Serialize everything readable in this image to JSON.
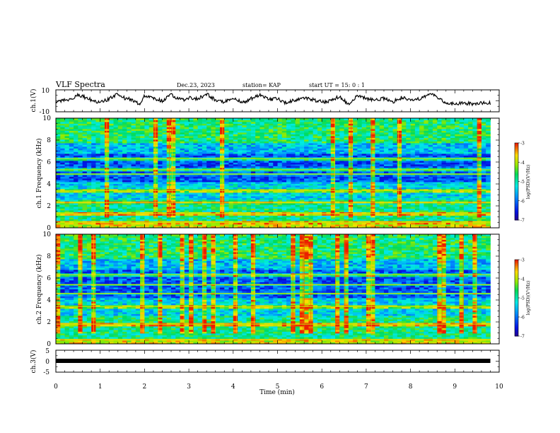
{
  "header": {
    "title": "VLF Spectra",
    "date": "Dec.23, 2023",
    "station": "station= KAP",
    "start_time": "start  UT =   15: 0   : 1"
  },
  "chart_data": [
    {
      "type": "line",
      "panel": "ch1-waveform",
      "ylabel": "ch.1(V)",
      "ylim": [
        -10,
        10
      ],
      "yticks": [
        "10",
        "-10"
      ],
      "xlim": [
        0,
        10
      ],
      "data_end_x": 9.8,
      "series": [
        {
          "x": [
            0,
            0.2,
            0.4,
            0.5,
            0.6,
            0.8,
            1.0,
            1.2,
            1.4,
            1.5,
            1.7,
            1.9,
            2.0,
            2.2,
            2.4,
            2.6,
            2.7,
            2.9,
            3.0,
            3.2,
            3.4,
            3.6,
            3.8,
            4.0,
            4.2,
            4.4,
            4.6,
            4.8,
            5.0,
            5.2,
            5.4,
            5.6,
            5.8,
            6.0,
            6.2,
            6.4,
            6.6,
            6.8,
            7.0,
            7.2,
            7.4,
            7.6,
            7.8,
            8.0,
            8.2,
            8.4,
            8.5,
            8.6,
            8.8,
            9.0,
            9.2,
            9.4,
            9.6,
            9.8
          ],
          "y": [
            -2,
            1,
            2,
            6,
            4,
            1,
            -2,
            2,
            6,
            3,
            1,
            -3,
            5,
            2,
            0,
            6,
            3,
            1,
            3,
            2,
            6,
            1,
            -1,
            3,
            -2,
            2,
            5,
            1,
            2,
            -2,
            1,
            3,
            1,
            -1,
            0,
            4,
            -3,
            5,
            2,
            1,
            2,
            -1,
            3,
            0,
            2,
            5,
            7,
            3,
            -2,
            -3,
            -2,
            -3,
            -2,
            -2
          ]
        }
      ]
    },
    {
      "type": "heatmap",
      "panel": "ch1-spectrogram",
      "ylabel": "ch.1  Frequency  (kHz)",
      "ylim": [
        0,
        10
      ],
      "yticks": [
        "0",
        "2",
        "4",
        "6",
        "8",
        "10"
      ],
      "xlim": [
        0,
        10
      ],
      "data_end_x": 9.8,
      "colorbar": {
        "label": "log(PSD)(V²/Hz)",
        "range": [
          -7,
          -3
        ],
        "ticks": [
          "-3",
          "-4",
          "-5",
          "-6",
          "-7"
        ]
      },
      "bands_khz": [
        0.5,
        1.3,
        2.3,
        3.4,
        4.9,
        5.3,
        6.3
      ]
    },
    {
      "type": "heatmap",
      "panel": "ch2-spectrogram",
      "ylabel": "ch.2  Frequency  (kHz)",
      "ylim": [
        0,
        10
      ],
      "yticks": [
        "0",
        "2",
        "4",
        "6",
        "8",
        "10"
      ],
      "xlim": [
        0,
        10
      ],
      "data_end_x": 9.8,
      "colorbar": {
        "label": "log(PSD)(V²/Hz)",
        "range": [
          -7,
          -3
        ],
        "ticks": [
          "-3",
          "-4",
          "-5",
          "-6",
          "-7"
        ]
      },
      "bands_khz": [
        0.4,
        1.8,
        3.4,
        4.6,
        5.4,
        6.3
      ]
    },
    {
      "type": "line",
      "panel": "ch3-waveform",
      "ylabel": "ch.3(V)",
      "ylim": [
        -5,
        5
      ],
      "yticks": [
        "5",
        "0",
        "-5"
      ],
      "xlim": [
        0,
        10
      ],
      "xticks": [
        "0",
        "1",
        "2",
        "3",
        "4",
        "5",
        "6",
        "7",
        "8",
        "9",
        "10"
      ],
      "xlabel": "Time  (min)",
      "data_end_x": 9.8,
      "series": [
        {
          "x": [
            0,
            9.8
          ],
          "y": [
            0,
            0
          ]
        }
      ]
    }
  ]
}
